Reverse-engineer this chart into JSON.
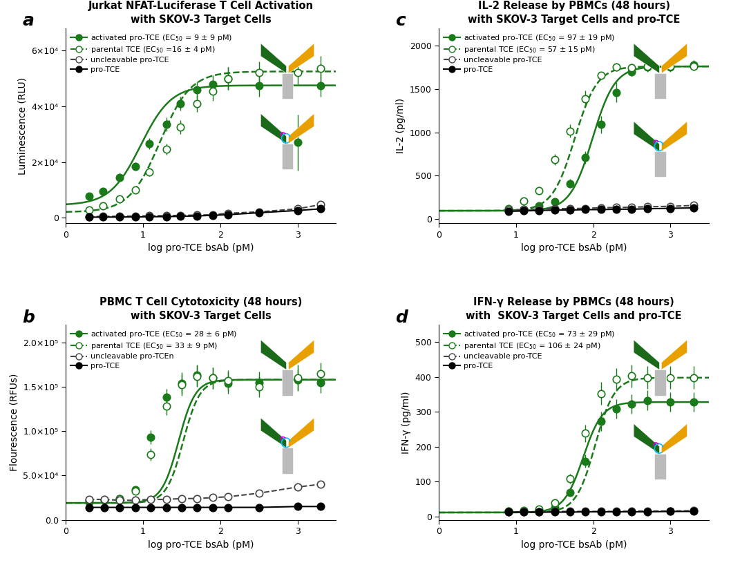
{
  "panel_a": {
    "title_line1": "Jurkat NFAT-Luciferase T Cell Activation",
    "title_line2": "with SKOV-3 Target Cells",
    "ylabel": "Luminescence (RLU)",
    "xlabel": "log pro-TCE bsAb (pM)",
    "panel_label": "a",
    "xlim": [
      0,
      3.5
    ],
    "ylim": [
      -2000,
      68000
    ],
    "yticks": [
      0,
      20000,
      40000,
      60000
    ],
    "ytick_labels": [
      "0",
      "2×10⁴",
      "4×10⁴",
      "6×10⁴"
    ],
    "legend": [
      "activated pro-TCE (EC$_{50}$ = 9 ± 9 pM)",
      "parental TCE (EC$_{50}$ =16 ± 4 pM)",
      "uncleavable pro-TCE",
      "pro-TCE"
    ],
    "series": {
      "activated": {
        "x": [
          0.3,
          0.48,
          0.7,
          0.9,
          1.08,
          1.3,
          1.48,
          1.7,
          1.9,
          2.1,
          2.5,
          3.0,
          3.3
        ],
        "y": [
          7800,
          9500,
          14500,
          18500,
          26500,
          33500,
          41000,
          46000,
          48000,
          50000,
          47500,
          27000,
          47500
        ],
        "yerr": [
          800,
          900,
          1400,
          1500,
          2000,
          2500,
          2500,
          3000,
          3000,
          4000,
          4000,
          10000,
          4000
        ],
        "ec50_log": 0.97,
        "hill": 2.2,
        "top": 47500,
        "bottom": 4500,
        "color": "#1a7a1a",
        "line_style": "solid",
        "marker": "filled_green"
      },
      "parental": {
        "x": [
          0.3,
          0.48,
          0.7,
          0.9,
          1.08,
          1.3,
          1.48,
          1.7,
          1.9,
          2.1,
          2.5,
          3.0,
          3.3
        ],
        "y": [
          2800,
          4200,
          6800,
          10000,
          16500,
          24500,
          32500,
          41000,
          45500,
          50000,
          52000,
          52000,
          53500
        ],
        "yerr": [
          500,
          500,
          800,
          1000,
          1500,
          2000,
          2500,
          3000,
          3500,
          4000,
          4000,
          4000,
          4500
        ],
        "ec50_log": 1.22,
        "hill": 2.2,
        "top": 52500,
        "bottom": 2000,
        "color": "#1a7a1a",
        "line_style": "dashed",
        "marker": "open_green"
      },
      "uncleavable": {
        "x": [
          0.3,
          0.48,
          0.7,
          0.9,
          1.08,
          1.3,
          1.48,
          1.7,
          1.9,
          2.1,
          2.5,
          3.0,
          3.3
        ],
        "y": [
          400,
          450,
          550,
          600,
          700,
          750,
          850,
          950,
          1100,
          1600,
          2100,
          3200,
          4700
        ],
        "yerr": [
          150,
          150,
          150,
          150,
          150,
          150,
          150,
          150,
          200,
          300,
          400,
          600,
          900
        ],
        "color": "#444444",
        "line_style": "dashed",
        "marker": "open_black"
      },
      "pro_tce": {
        "x": [
          0.3,
          0.48,
          0.7,
          0.9,
          1.08,
          1.3,
          1.48,
          1.7,
          1.9,
          2.1,
          2.5,
          3.0,
          3.3
        ],
        "y": [
          200,
          220,
          260,
          300,
          360,
          420,
          500,
          660,
          860,
          1100,
          1800,
          2600,
          3200
        ],
        "yerr": [
          80,
          80,
          80,
          80,
          80,
          80,
          80,
          100,
          150,
          200,
          300,
          500,
          600
        ],
        "color": "#000000",
        "line_style": "solid",
        "marker": "filled_black"
      }
    }
  },
  "panel_b": {
    "title_line1": "PBMC T Cell Cytotoxicity (48 hours)",
    "title_line2": "with SKOV-3 Target Cells",
    "ylabel": "Flourescence (RFUs)",
    "xlabel": "log pro-TCE bsAb (pM)",
    "panel_label": "b",
    "xlim": [
      0,
      3.5
    ],
    "ylim": [
      0,
      220000
    ],
    "yticks": [
      0,
      50000,
      100000,
      150000,
      200000
    ],
    "ytick_labels": [
      "0.0",
      "5.0×10⁴",
      "1.0×10⁵",
      "1.5×10⁵",
      "2.0×10⁵"
    ],
    "legend": [
      "activated pro-TCE (EC$_{50}$ = 28 ± 6 pM)",
      "parental TCE (EC$_{50}$ = 33 ± 9 pM)",
      "uncleavable pro-TCEn",
      "pro-TCE"
    ],
    "series": {
      "activated": {
        "x": [
          0.3,
          0.5,
          0.7,
          0.9,
          1.1,
          1.3,
          1.5,
          1.7,
          1.9,
          2.1,
          2.5,
          3.0,
          3.3
        ],
        "y": [
          20000,
          22000,
          24000,
          34000,
          93000,
          138000,
          154000,
          163000,
          160000,
          154000,
          155000,
          158000,
          155000
        ],
        "yerr": [
          2000,
          2000,
          2500,
          3000,
          8000,
          10000,
          12000,
          12000,
          12000,
          12000,
          12000,
          12000,
          12000
        ],
        "ec50_log": 1.46,
        "hill": 4.0,
        "top": 158000,
        "bottom": 19000,
        "color": "#1a7a1a",
        "line_style": "solid",
        "marker": "filled_green"
      },
      "parental": {
        "x": [
          0.3,
          0.5,
          0.7,
          0.9,
          1.1,
          1.3,
          1.5,
          1.7,
          1.9,
          2.1,
          2.5,
          3.0,
          3.3
        ],
        "y": [
          22000,
          22000,
          24000,
          32000,
          74000,
          128000,
          152000,
          162000,
          160000,
          157000,
          150000,
          160000,
          165000
        ],
        "yerr": [
          2000,
          2000,
          2500,
          3000,
          7000,
          10000,
          12000,
          12000,
          12000,
          12000,
          12000,
          15000,
          12000
        ],
        "ec50_log": 1.52,
        "hill": 4.0,
        "top": 158000,
        "bottom": 19000,
        "color": "#1a7a1a",
        "line_style": "dashed",
        "marker": "open_green"
      },
      "uncleavable": {
        "x": [
          0.3,
          0.5,
          0.7,
          0.9,
          1.1,
          1.3,
          1.5,
          1.7,
          1.9,
          2.1,
          2.5,
          3.0,
          3.3
        ],
        "y": [
          23000,
          23000,
          22000,
          22000,
          23000,
          23000,
          24000,
          24000,
          25000,
          26000,
          30000,
          37000,
          40000
        ],
        "yerr": [
          1500,
          1500,
          1500,
          5000,
          1500,
          1500,
          1500,
          1500,
          1500,
          1500,
          2000,
          2500,
          3000
        ],
        "color": "#444444",
        "line_style": "dashed",
        "marker": "open_black"
      },
      "pro_tce": {
        "x": [
          0.3,
          0.5,
          0.7,
          0.9,
          1.1,
          1.3,
          1.5,
          1.7,
          1.9,
          2.1,
          2.5,
          3.0,
          3.3
        ],
        "y": [
          14000,
          14000,
          14000,
          14000,
          14000,
          14000,
          14000,
          14000,
          14000,
          14000,
          14000,
          15000,
          15000
        ],
        "yerr": [
          1000,
          1000,
          1000,
          1000,
          1000,
          1000,
          1000,
          1000,
          1000,
          1000,
          1000,
          1000,
          1000
        ],
        "color": "#000000",
        "line_style": "solid",
        "marker": "filled_black"
      }
    }
  },
  "panel_c": {
    "title_line1": "IL-2 Release by PBMCs (48 hours)",
    "title_line2": "with SKOV-3 Target Cells and pro-TCE",
    "ylabel": "IL-2 (pg/ml)",
    "xlabel": "log pro-TCE bsAb (pM)",
    "panel_label": "c",
    "xlim": [
      0,
      3.5
    ],
    "ylim": [
      -50,
      2200
    ],
    "yticks": [
      0,
      500,
      1000,
      1500,
      2000
    ],
    "ytick_labels": [
      "0",
      "500",
      "1000",
      "1500",
      "2000"
    ],
    "legend": [
      "activated pro-TCE (EC$_{50}$ = 97 ± 19 pM)",
      "parental TCE (EC$_{50}$ = 57 ± 15 pM)",
      "uncleavable pro-TCE",
      "pro-TCE"
    ],
    "series": {
      "activated": {
        "x": [
          0.9,
          1.1,
          1.3,
          1.5,
          1.7,
          1.9,
          2.1,
          2.3,
          2.5,
          2.7,
          3.0,
          3.3
        ],
        "y": [
          100,
          110,
          150,
          200,
          410,
          710,
          1090,
          1460,
          1700,
          1750,
          1750,
          1780
        ],
        "yerr": [
          15,
          18,
          25,
          35,
          55,
          75,
          100,
          115,
          50,
          55,
          55,
          55
        ],
        "ec50_log": 1.99,
        "hill": 3.0,
        "top": 1760,
        "bottom": 95,
        "color": "#1a7a1a",
        "line_style": "solid",
        "marker": "filled_green"
      },
      "parental": {
        "x": [
          0.9,
          1.1,
          1.3,
          1.5,
          1.7,
          1.9,
          2.1,
          2.3,
          2.5,
          2.7,
          3.0,
          3.3
        ],
        "y": [
          120,
          205,
          325,
          685,
          1015,
          1385,
          1655,
          1752,
          1742,
          1762,
          1762,
          1762
        ],
        "yerr": [
          18,
          28,
          38,
          65,
          78,
          98,
          28,
          48,
          48,
          48,
          48,
          48
        ],
        "ec50_log": 1.76,
        "hill": 3.0,
        "top": 1760,
        "bottom": 95,
        "color": "#1a7a1a",
        "line_style": "dashed",
        "marker": "open_green"
      },
      "uncleavable": {
        "x": [
          0.9,
          1.1,
          1.3,
          1.5,
          1.7,
          1.9,
          2.1,
          2.3,
          2.5,
          2.7,
          3.0,
          3.3
        ],
        "y": [
          100,
          110,
          115,
          120,
          120,
          122,
          130,
          132,
          136,
          141,
          146,
          156
        ],
        "yerr": [
          14,
          14,
          14,
          14,
          14,
          14,
          14,
          14,
          14,
          14,
          14,
          14
        ],
        "color": "#444444",
        "line_style": "dashed",
        "marker": "open_black"
      },
      "pro_tce": {
        "x": [
          0.9,
          1.1,
          1.3,
          1.5,
          1.7,
          1.9,
          2.1,
          2.3,
          2.5,
          2.7,
          3.0,
          3.3
        ],
        "y": [
          88,
          93,
          98,
          103,
          103,
          108,
          108,
          113,
          113,
          118,
          123,
          128
        ],
        "yerr": [
          9,
          9,
          9,
          9,
          9,
          9,
          9,
          9,
          9,
          9,
          9,
          9
        ],
        "color": "#000000",
        "line_style": "solid",
        "marker": "filled_black"
      }
    }
  },
  "panel_d": {
    "title_line1": "IFN-γ Release by PBMCs (48 hours)",
    "title_line2": "with  SKOV-3 Target Cells and pro-TCE",
    "ylabel": "IFN-γ (pg/ml)",
    "xlabel": "log pro-TCE bsAb (pM)",
    "panel_label": "d",
    "xlim": [
      0,
      3.5
    ],
    "ylim": [
      -10,
      550
    ],
    "yticks": [
      0,
      100,
      200,
      300,
      400,
      500
    ],
    "ytick_labels": [
      "0",
      "100",
      "200",
      "300",
      "400",
      "500"
    ],
    "legend": [
      "activated pro-TCE (EC$_{50}$ = 73 ± 29 pM)",
      "parental TCE (EC$_{50}$ = 106 ± 24 pM)",
      "uncleavable pro-TCE",
      "pro-TCE"
    ],
    "series": {
      "activated": {
        "x": [
          0.9,
          1.1,
          1.3,
          1.5,
          1.7,
          1.9,
          2.1,
          2.3,
          2.5,
          2.7,
          3.0,
          3.3
        ],
        "y": [
          14,
          14,
          17,
          24,
          68,
          158,
          273,
          308,
          323,
          333,
          328,
          328
        ],
        "yerr": [
          4,
          4,
          4,
          4,
          9,
          19,
          28,
          28,
          28,
          28,
          28,
          28
        ],
        "ec50_log": 1.87,
        "hill": 3.5,
        "top": 328,
        "bottom": 11,
        "color": "#1a7a1a",
        "line_style": "solid",
        "marker": "filled_green"
      },
      "parental": {
        "x": [
          0.9,
          1.1,
          1.3,
          1.5,
          1.7,
          1.9,
          2.1,
          2.3,
          2.5,
          2.7,
          3.0,
          3.3
        ],
        "y": [
          14,
          16,
          21,
          38,
          108,
          238,
          353,
          393,
          403,
          398,
          398,
          398
        ],
        "yerr": [
          4,
          4,
          4,
          7,
          14,
          24,
          33,
          33,
          33,
          33,
          33,
          33
        ],
        "ec50_log": 2.025,
        "hill": 3.5,
        "top": 398,
        "bottom": 11,
        "color": "#1a7a1a",
        "line_style": "dashed",
        "marker": "open_green"
      },
      "uncleavable": {
        "x": [
          0.9,
          1.1,
          1.3,
          1.5,
          1.7,
          1.9,
          2.1,
          2.3,
          2.5,
          2.7,
          3.0,
          3.3
        ],
        "y": [
          13,
          13,
          13,
          14,
          14,
          14,
          14,
          14,
          15,
          15,
          15,
          16
        ],
        "yerr": [
          2,
          2,
          2,
          2,
          2,
          2,
          2,
          2,
          2,
          2,
          2,
          2
        ],
        "color": "#444444",
        "line_style": "dashed",
        "marker": "open_black"
      },
      "pro_tce": {
        "x": [
          0.9,
          1.1,
          1.3,
          1.5,
          1.7,
          1.9,
          2.1,
          2.3,
          2.5,
          2.7,
          3.0,
          3.3
        ],
        "y": [
          12,
          12,
          12,
          12,
          12,
          13,
          13,
          13,
          13,
          13,
          14,
          14
        ],
        "yerr": [
          2,
          2,
          2,
          2,
          2,
          2,
          2,
          2,
          2,
          2,
          2,
          2
        ],
        "color": "#000000",
        "line_style": "solid",
        "marker": "filled_black"
      }
    }
  },
  "green": "#1a7a1a",
  "fig_bg": "#ffffff"
}
